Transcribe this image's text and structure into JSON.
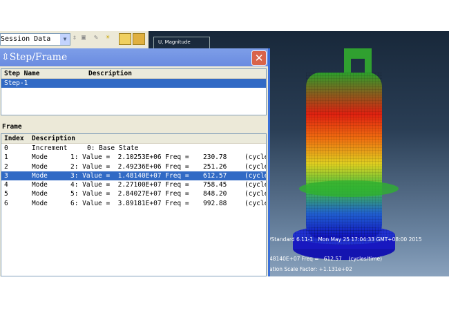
{
  "toolbar": {
    "session_combo": "Session Data",
    "legend_title": "U, Magnitude"
  },
  "dialog": {
    "title": "Step/Frame",
    "close_icon": "close-icon",
    "step_table": {
      "headers": [
        "Step Name",
        "Description"
      ],
      "rows": [
        {
          "name": "Step-1",
          "description": ""
        }
      ],
      "selected": 0
    },
    "frame_label": "Frame",
    "frame_table": {
      "headers": [
        "Index",
        "Description"
      ],
      "selected": 3,
      "rows": [
        {
          "index": "0",
          "type": "Increment",
          "detail": "0: Base State",
          "freq": "",
          "unit": ""
        },
        {
          "index": "1",
          "type": "Mode",
          "detail": "1: Value =  2.10253E+06 Freq =",
          "freq": "230.78",
          "unit": "(cycle"
        },
        {
          "index": "2",
          "type": "Mode",
          "detail": "2: Value =  2.49236E+06 Freq =",
          "freq": "251.26",
          "unit": "(cycle"
        },
        {
          "index": "3",
          "type": "Mode",
          "detail": "3: Value =  1.48140E+07 Freq =",
          "freq": "612.57",
          "unit": "(cycle"
        },
        {
          "index": "4",
          "type": "Mode",
          "detail": "4: Value =  2.27100E+07 Freq =",
          "freq": "758.45",
          "unit": "(cycle"
        },
        {
          "index": "5",
          "type": "Mode",
          "detail": "5: Value =  2.84027E+07 Freq =",
          "freq": "848.20",
          "unit": "(cycle"
        },
        {
          "index": "6",
          "type": "Mode",
          "detail": "6: Value =  3.89181E+07 Freq =",
          "freq": "992.88",
          "unit": "(cycle"
        }
      ]
    }
  },
  "viewport": {
    "info_line1": "/Standard 6.11-1   Mon May 25 17:04:33 GMT+08:00 2015",
    "info_line2": "48140E+07 Freq =   612.57    (cycles/time)",
    "info_line3": "ation Scale Factor: +1.131e+02"
  }
}
